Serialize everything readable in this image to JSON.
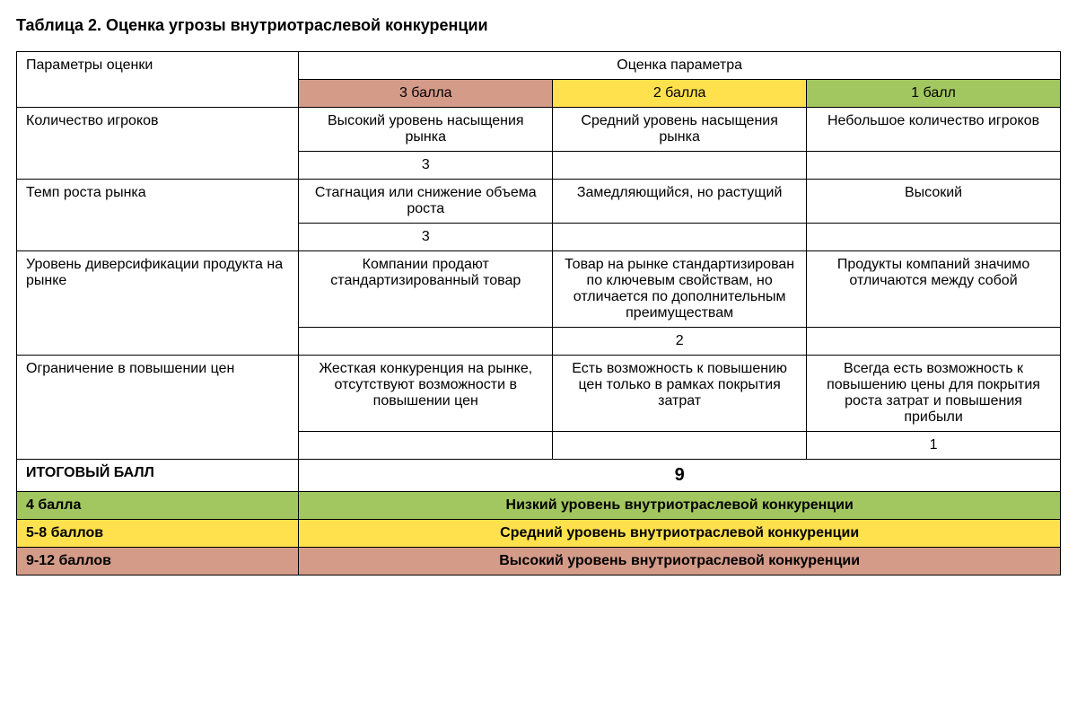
{
  "title": "Таблица 2. Оценка угрозы внутриотраслевой конкуренции",
  "table": {
    "header": {
      "param_label": "Параметры оценки",
      "score_label": "Оценка параметра",
      "score_cols": {
        "col3": "3 балла",
        "col2": "2 балла",
        "col1": "1 балл"
      },
      "colors": {
        "col3_bg": "#d49b89",
        "col2_bg": "#ffe14d",
        "col1_bg": "#a3c760"
      }
    },
    "rows": [
      {
        "param": "Количество игроков",
        "col3": "Высокий уровень насыщения рынка",
        "col2": "Средний уровень насыщения рынка",
        "col1": "Небольшое количество игроков",
        "score_in": "col3",
        "score_val": "3"
      },
      {
        "param": "Темп роста рынка",
        "col3": "Стагнация или снижение объема роста",
        "col2": "Замедляющийся, но растущий",
        "col1": "Высокий",
        "score_in": "col3",
        "score_val": "3"
      },
      {
        "param": "Уровень диверсификации продукта на рынке",
        "col3": "Компании продают стандартизированный товар",
        "col2": "Товар на рынке стандартизирован по ключевым свойствам, но отличается по дополнительным преимуществам",
        "col1": "Продукты компаний значимо отличаются между собой",
        "score_in": "col2",
        "score_val": "2"
      },
      {
        "param": "Ограничение в повышении цен",
        "col3": "Жесткая конкуренция на рынке, отсутствуют возможности в повышении цен",
        "col2": "Есть возможность к повышению цен только в рамках покрытия затрат",
        "col1": "Всегда есть возможность к повышению цены для покрытия роста затрат и повышения прибыли",
        "score_in": "col1",
        "score_val": "1"
      }
    ],
    "total": {
      "label": "ИТОГОВЫЙ БАЛЛ",
      "value": "9"
    },
    "legend": [
      {
        "label": "4 балла",
        "desc": "Низкий уровень внутриотраслевой конкуренции",
        "bg": "green-bg"
      },
      {
        "label": "5-8 баллов",
        "desc": "Средний уровень внутриотраслевой конкуренции",
        "bg": "yellow-bg"
      },
      {
        "label": "9-12 баллов",
        "desc": "Высокий уровень внутриотраслевой конкуренции",
        "bg": "red-bg"
      }
    ]
  }
}
